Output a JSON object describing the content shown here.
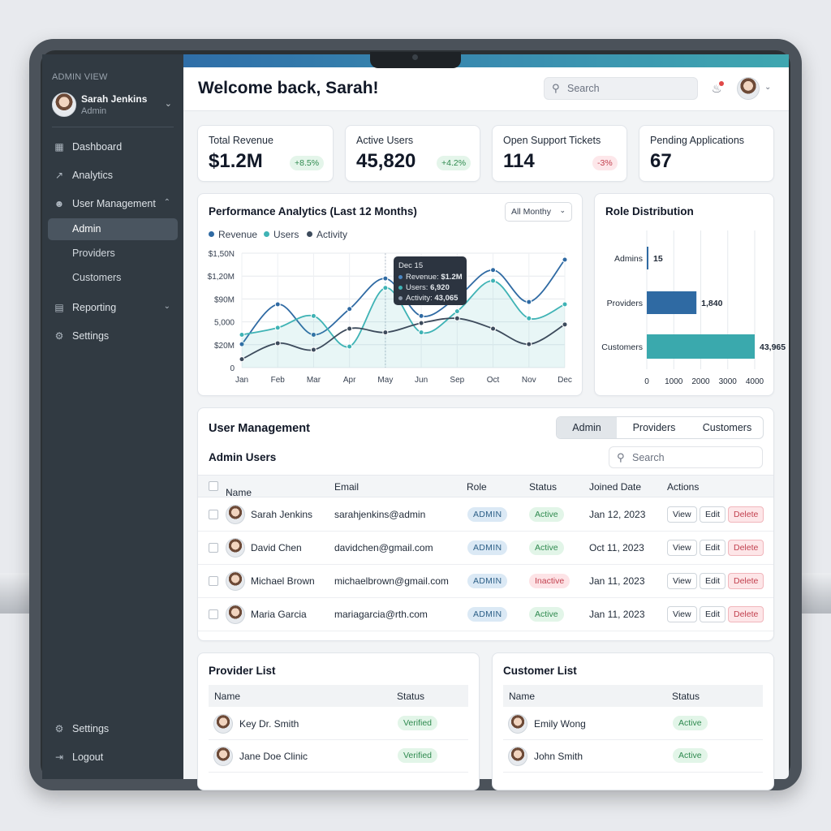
{
  "sidebar": {
    "role_label": "ADMIN VIEW",
    "user": {
      "name": "Sarah Jenkins",
      "role": "Admin"
    },
    "items": [
      {
        "label": "Dashboard",
        "icon": "grid-icon"
      },
      {
        "label": "Analytics",
        "icon": "chart-line-icon"
      },
      {
        "label": "User Management",
        "icon": "users-icon",
        "expanded": true,
        "children": [
          "Admin",
          "Providers",
          "Customers"
        ],
        "active_child": "Admin"
      },
      {
        "label": "Reporting",
        "icon": "bar-chart-icon",
        "expanded": false
      },
      {
        "label": "Settings",
        "icon": "gear-icon"
      }
    ],
    "bottom": [
      {
        "label": "Settings",
        "icon": "gear-icon"
      },
      {
        "label": "Logout",
        "icon": "logout-icon"
      }
    ]
  },
  "header": {
    "title": "Welcome back, Sarah!",
    "search_placeholder": "Search"
  },
  "kpis": [
    {
      "label": "Total Revenue",
      "value": "$1.2M",
      "change": "+8.5%",
      "trend": "up"
    },
    {
      "label": "Active Users",
      "value": "45,820",
      "change": "+4.2%",
      "trend": "up"
    },
    {
      "label": "Open Support Tickets",
      "value": "114",
      "change": "-3%",
      "trend": "down"
    },
    {
      "label": "Pending Applications",
      "value": "67",
      "change": "",
      "trend": ""
    }
  ],
  "performance": {
    "title": "Performance Analytics (Last 12 Months)",
    "filter": "All Monthy",
    "legend": [
      "Revenue",
      "Users",
      "Activity"
    ],
    "tooltip": {
      "title": "Dec 15",
      "rows": [
        {
          "label": "Revenue:",
          "value": "$1.2M"
        },
        {
          "label": "Users:",
          "value": "6,920"
        },
        {
          "label": "Activity:",
          "value": "43,065"
        }
      ]
    }
  },
  "role_distribution": {
    "title": "Role Distribution"
  },
  "chart_data": [
    {
      "type": "line",
      "title": "Performance Analytics (Last 12 Months)",
      "categories": [
        "Jan",
        "Feb",
        "Mar",
        "Apr",
        "May",
        "Jun",
        "Sep",
        "Oct",
        "Nov",
        "Dec"
      ],
      "y_tick_labels": [
        "0",
        "$20M",
        "5,000",
        "$90M",
        "$1,20M",
        "$1,50N"
      ],
      "y_scale": [
        0,
        5
      ],
      "series": [
        {
          "name": "Revenue",
          "color": "#2f6aa3",
          "values": [
            0.5,
            1.35,
            0.7,
            1.25,
            1.9,
            1.1,
            1.5,
            2.08,
            1.4,
            2.3
          ]
        },
        {
          "name": "Users",
          "color": "#3fb3b5",
          "values": [
            0.7,
            0.85,
            1.1,
            0.45,
            1.7,
            0.75,
            1.2,
            1.85,
            1.05,
            1.35
          ]
        },
        {
          "name": "Activity",
          "color": "#3d4b5c",
          "values": [
            0.18,
            0.52,
            0.38,
            0.83,
            0.75,
            0.95,
            1.05,
            0.83,
            0.5,
            0.92
          ]
        }
      ],
      "grid": true,
      "legend": "top-left"
    },
    {
      "type": "bar",
      "orientation": "horizontal",
      "title": "Role Distribution",
      "categories": [
        "Admins",
        "Providers",
        "Customers"
      ],
      "values": [
        15,
        1840,
        43965
      ],
      "value_labels": [
        "15",
        "1,840",
        "43,965"
      ],
      "x_ticks": [
        0,
        1000,
        2000,
        3000,
        4000
      ],
      "xlim": [
        0,
        4000
      ],
      "grid": true
    }
  ],
  "user_management": {
    "title": "User Management",
    "tabs": [
      "Admin",
      "Providers",
      "Customers"
    ],
    "active_tab": "Admin",
    "subtitle": "Admin Users",
    "search_placeholder": "Search",
    "columns": [
      "Name",
      "Email",
      "Role",
      "Status",
      "Joined Date",
      "Actions"
    ],
    "rows": [
      {
        "name": "Sarah Jenkins",
        "email": "sarahjenkins@admin",
        "role": "ADMIN",
        "status": "Active",
        "joined": "Jan 12, 2023"
      },
      {
        "name": "David Chen",
        "email": "davidchen@gmail.com",
        "role": "ADMIN",
        "status": "Active",
        "joined": "Oct 11, 2023"
      },
      {
        "name": "Michael Brown",
        "email": "michaelbrown@gmail.com",
        "role": "ADMIN",
        "status": "Inactive",
        "joined": "Jan 11, 2023"
      },
      {
        "name": "Maria Garcia",
        "email": "mariagarcia@rth.com",
        "role": "ADMIN",
        "status": "Active",
        "joined": "Jan 11, 2023"
      }
    ],
    "actions": [
      "View",
      "Edit",
      "Delete"
    ]
  },
  "provider_list": {
    "title": "Provider List",
    "columns": [
      "Name",
      "Status"
    ],
    "rows": [
      {
        "name": "Key Dr. Smith",
        "status": "Verified"
      },
      {
        "name": "Jane Doe Clinic",
        "status": "Verified"
      }
    ]
  },
  "customer_list": {
    "title": "Customer List",
    "columns": [
      "Name",
      "Status"
    ],
    "rows": [
      {
        "name": "Emily Wong",
        "status": "Active"
      },
      {
        "name": "John Smith",
        "status": "Active"
      }
    ]
  },
  "colors": {
    "sidebar": "#313a42",
    "accent_blue": "#2f6aa3",
    "accent_teal": "#3fb3b5",
    "accent_dark": "#3d4b5c",
    "success": "#2f8a4f",
    "danger": "#c2414f"
  }
}
